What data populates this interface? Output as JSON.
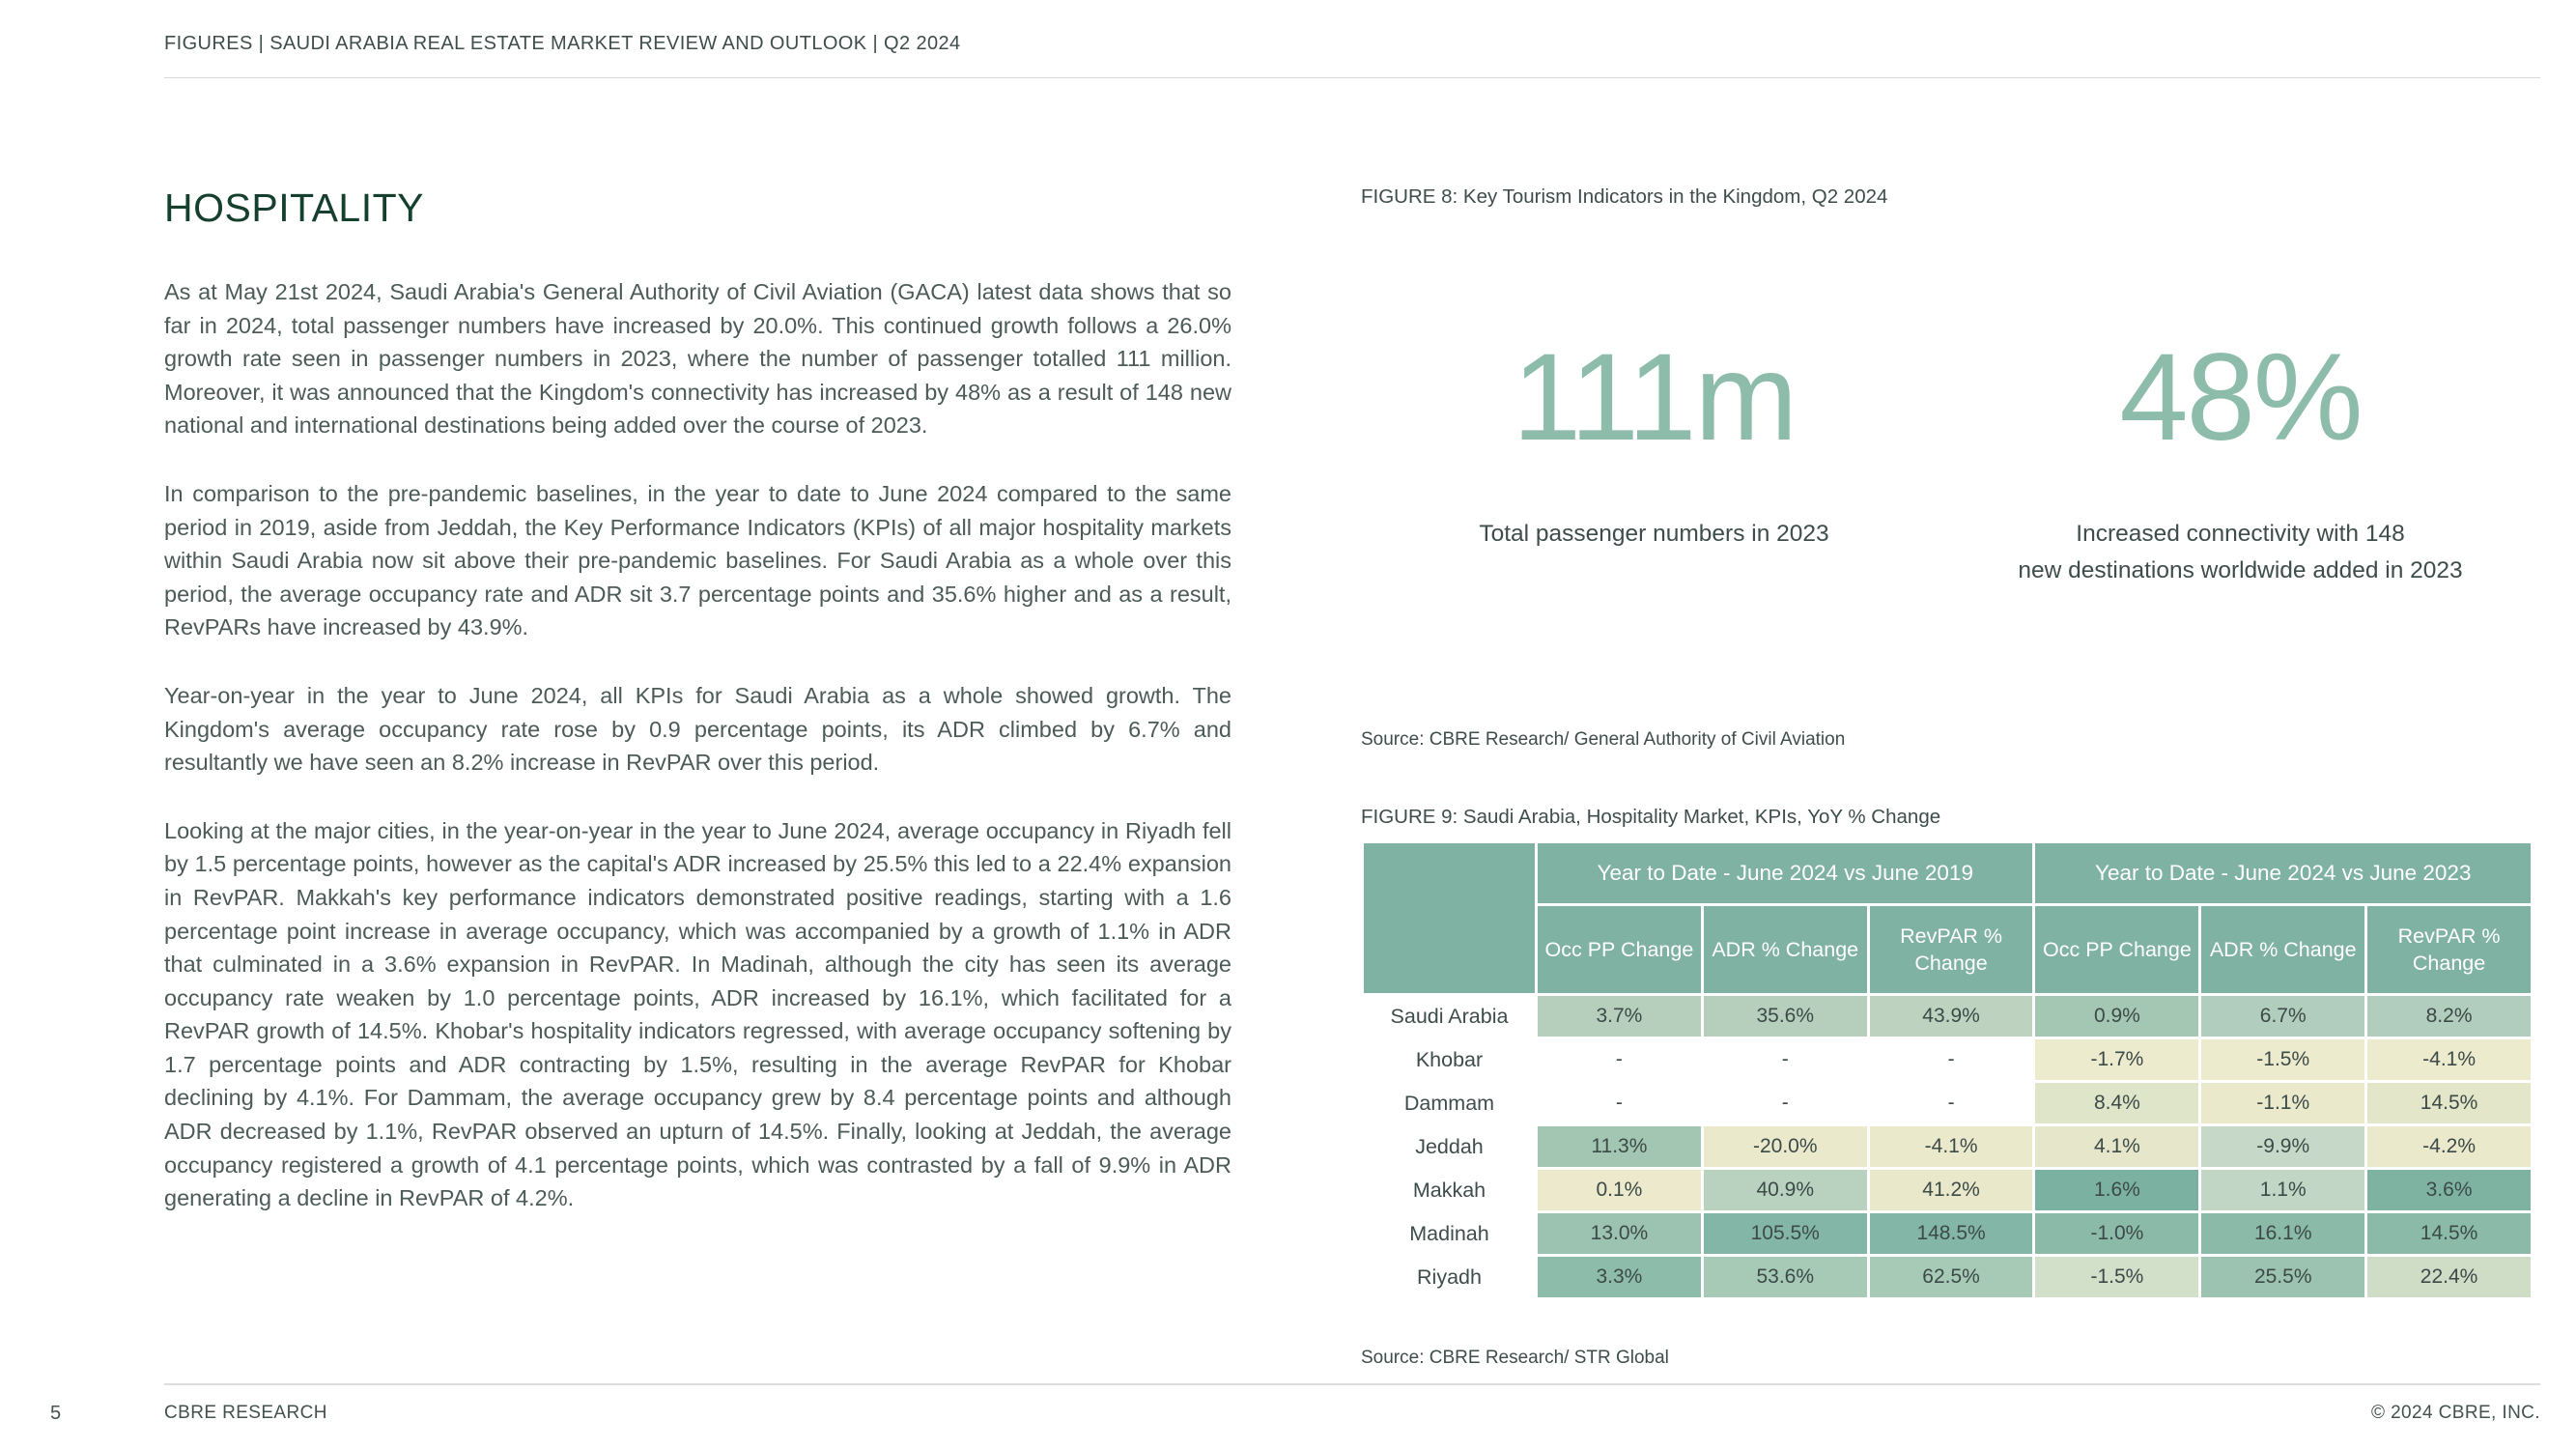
{
  "header": {
    "title": "FIGURES  |  SAUDI ARABIA REAL ESTATE MARKET REVIEW AND OUTLOOK |  Q2 2024"
  },
  "article": {
    "title": "HOSPITALITY",
    "paragraphs": [
      "As at May 21st 2024, Saudi Arabia's General Authority of Civil Aviation (GACA) latest data shows that so far in 2024, total passenger numbers have increased by 20.0%. This continued growth follows a 26.0% growth rate seen in passenger numbers in 2023, where the number of passenger totalled 111 million. Moreover, it was announced that the Kingdom's connectivity has increased by 48% as a result of 148 new national and international destinations being added over the course of 2023.",
      "In comparison to the pre-pandemic baselines, in the year to date to June 2024 compared to the same period in 2019, aside from Jeddah, the Key Performance Indicators (KPIs) of all major hospitality markets within Saudi Arabia now sit above their pre-pandemic baselines. For Saudi Arabia as a whole over this period, the average occupancy rate and ADR sit 3.7 percentage points and 35.6% higher and as a result, RevPARs have increased by 43.9%.",
      "Year-on-year in the year to June 2024, all KPIs for Saudi Arabia as a whole showed growth. The Kingdom's average occupancy rate rose by 0.9 percentage points, its ADR climbed by 6.7% and resultantly we have seen an 8.2% increase in RevPAR over this period.",
      "Looking at the major cities, in the year-on-year in the year to June 2024, average occupancy in Riyadh fell by 1.5 percentage points, however as the capital's ADR increased by 25.5% this led to a 22.4% expansion in RevPAR. Makkah's key performance indicators demonstrated positive readings, starting with a 1.6 percentage point increase in average occupancy, which was accompanied by a growth of 1.1% in ADR that culminated in a 3.6% expansion in RevPAR. In Madinah, although the city has seen its average occupancy rate weaken by 1.0 percentage points, ADR increased by 16.1%, which facilitated for a RevPAR growth of 14.5%. Khobar's hospitality indicators regressed, with average occupancy softening by 1.7 percentage points and ADR contracting by 1.5%, resulting in the average RevPAR for Khobar declining by 4.1%. For Dammam, the average occupancy grew by 8.4 percentage points and although ADR decreased by 1.1%, RevPAR observed an upturn of 14.5%. Finally, looking at Jeddah, the average occupancy registered a growth of 4.1 percentage points, which was contrasted by a fall of 9.9% in ADR generating a decline in RevPAR of 4.2%."
    ]
  },
  "figure8": {
    "title": "FIGURE 8: Key Tourism Indicators in the Kingdom, Q2 2024",
    "stats": [
      {
        "value": "111m",
        "caption": "Total passenger numbers in 2023"
      },
      {
        "value": "48%",
        "caption": "Increased connectivity with 148\nnew destinations worldwide added in 2023"
      }
    ],
    "source": "Source: CBRE Research/ General Authority of Civil Aviation"
  },
  "figure9": {
    "title": "FIGURE 9: Saudi Arabia, Hospitality Market, KPIs, YoY % Change",
    "group_headers": [
      "Year to Date - June 2024 vs June 2019",
      "Year to Date - June 2024 vs June 2023"
    ],
    "col_headers": [
      "Occ PP Change",
      "ADR % Change",
      "RevPAR  %\nChange",
      "Occ PP Change",
      "ADR % Change",
      "RevPAR  %\nChange"
    ],
    "rows": [
      {
        "label": "Saudi Arabia",
        "cells": [
          {
            "v": "3.7%",
            "bg": "#b6cfbd"
          },
          {
            "v": "35.6%",
            "bg": "#b6cfbd"
          },
          {
            "v": "43.9%",
            "bg": "#bdd3c0"
          },
          {
            "v": "0.9%",
            "bg": "#a4c7b4"
          },
          {
            "v": "6.7%",
            "bg": "#b0cdbd"
          },
          {
            "v": "8.2%",
            "bg": "#b0cdbd"
          }
        ]
      },
      {
        "label": "Khobar",
        "cells": [
          {
            "v": "-",
            "bg": "#ffffff"
          },
          {
            "v": "-",
            "bg": "#ffffff"
          },
          {
            "v": "-",
            "bg": "#ffffff"
          },
          {
            "v": "-1.7%",
            "bg": "#edebce"
          },
          {
            "v": "-1.5%",
            "bg": "#edebce"
          },
          {
            "v": "-4.1%",
            "bg": "#edebce"
          }
        ]
      },
      {
        "label": "Dammam",
        "cells": [
          {
            "v": "-",
            "bg": "#ffffff"
          },
          {
            "v": "-",
            "bg": "#ffffff"
          },
          {
            "v": "-",
            "bg": "#ffffff"
          },
          {
            "v": "8.4%",
            "bg": "#dfe5c8"
          },
          {
            "v": "-1.1%",
            "bg": "#eae9cc"
          },
          {
            "v": "14.5%",
            "bg": "#e3e6c9"
          }
        ]
      },
      {
        "label": "Jeddah",
        "cells": [
          {
            "v": "11.3%",
            "bg": "#a2c6b2"
          },
          {
            "v": "-20.0%",
            "bg": "#ebe9cc"
          },
          {
            "v": "-4.1%",
            "bg": "#ebe9cc"
          },
          {
            "v": "4.1%",
            "bg": "#e6e7ca"
          },
          {
            "v": "-9.9%",
            "bg": "#c6d9c8"
          },
          {
            "v": "-4.2%",
            "bg": "#ebe9cc"
          }
        ]
      },
      {
        "label": "Makkah",
        "cells": [
          {
            "v": "0.1%",
            "bg": "#ece9cc"
          },
          {
            "v": "40.9%",
            "bg": "#b9d2c0"
          },
          {
            "v": "41.2%",
            "bg": "#e9e8cb"
          },
          {
            "v": "1.6%",
            "bg": "#7bb1a0"
          },
          {
            "v": "1.1%",
            "bg": "#c1d6c5"
          },
          {
            "v": "3.6%",
            "bg": "#7eb3a2"
          }
        ]
      },
      {
        "label": "Madinah",
        "cells": [
          {
            "v": "13.0%",
            "bg": "#9cc3b1"
          },
          {
            "v": "105.5%",
            "bg": "#83b6a6"
          },
          {
            "v": "148.5%",
            "bg": "#83b6a6"
          },
          {
            "v": "-1.0%",
            "bg": "#8bbaa9"
          },
          {
            "v": "16.1%",
            "bg": "#8bbaa9"
          },
          {
            "v": "14.5%",
            "bg": "#8bbaa9"
          }
        ]
      },
      {
        "label": "Riyadh",
        "cells": [
          {
            "v": "3.3%",
            "bg": "#8dbcab"
          },
          {
            "v": "53.6%",
            "bg": "#a7cab6"
          },
          {
            "v": "62.5%",
            "bg": "#a7cab6"
          },
          {
            "v": "-1.5%",
            "bg": "#d2dfc9"
          },
          {
            "v": "25.5%",
            "bg": "#9cc3b1"
          },
          {
            "v": "22.4%",
            "bg": "#cfddc7"
          }
        ]
      }
    ],
    "source": "Source: CBRE Research/ STR Global"
  },
  "footer": {
    "page_number": "5",
    "left": "CBRE RESEARCH",
    "right": "© 2024 CBRE, INC."
  },
  "colors": {
    "accent_sage": "#8dbcab",
    "table_header_green": "#7fb2a2",
    "title_dark_green": "#16402e",
    "body_text": "#4c5b58",
    "rule_gray": "#d9d9d9"
  }
}
